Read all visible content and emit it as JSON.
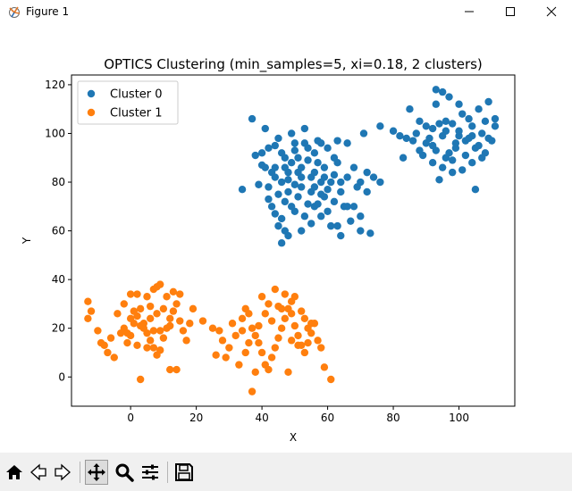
{
  "window": {
    "title": "Figure 1",
    "icons": [
      "matplotlib-app-icon",
      "minimize-icon",
      "maximize-icon",
      "close-icon"
    ]
  },
  "toolbar": {
    "tools": [
      "home-icon",
      "back-icon",
      "forward-icon",
      "pan-icon",
      "zoom-icon",
      "configure-subplots-icon",
      "save-icon"
    ],
    "active_tool": "pan-icon"
  },
  "chart_data": {
    "type": "scatter",
    "title": "OPTICS Clustering (min_samples=5, xi=0.18, 2 clusters)",
    "xlabel": "X",
    "ylabel": "Y",
    "xlim": [
      -18,
      117
    ],
    "ylim": [
      -12,
      124
    ],
    "xticks": [
      0,
      20,
      40,
      60,
      80,
      100
    ],
    "yticks": [
      0,
      20,
      40,
      60,
      80,
      100,
      120
    ],
    "grid": false,
    "legend": "top-left",
    "series": [
      {
        "name": "Cluster 0",
        "color": "#1f77b4",
        "points": [
          [
            37,
            106
          ],
          [
            41,
            102
          ],
          [
            45,
            98
          ],
          [
            42,
            94
          ],
          [
            47,
            90
          ],
          [
            38,
            91
          ],
          [
            44,
            86
          ],
          [
            49,
            88
          ],
          [
            51,
            84
          ],
          [
            46,
            80
          ],
          [
            42,
            78
          ],
          [
            48,
            76
          ],
          [
            52,
            78
          ],
          [
            55,
            82
          ],
          [
            57,
            88
          ],
          [
            50,
            93
          ],
          [
            53,
            96
          ],
          [
            56,
            92
          ],
          [
            59,
            86
          ],
          [
            61,
            80
          ],
          [
            58,
            75
          ],
          [
            54,
            71
          ],
          [
            50,
            68
          ],
          [
            46,
            65
          ],
          [
            43,
            70
          ],
          [
            47,
            72
          ],
          [
            51,
            74
          ],
          [
            56,
            70
          ],
          [
            60,
            68
          ],
          [
            62,
            72
          ],
          [
            64,
            76
          ],
          [
            66,
            82
          ],
          [
            63,
            88
          ],
          [
            60,
            94
          ],
          [
            57,
            97
          ],
          [
            63,
            97
          ],
          [
            66,
            96
          ],
          [
            68,
            86
          ],
          [
            70,
            80
          ],
          [
            72,
            84
          ],
          [
            74,
            82
          ],
          [
            71,
            100
          ],
          [
            45,
            62
          ],
          [
            48,
            58
          ],
          [
            52,
            60
          ],
          [
            55,
            63
          ],
          [
            58,
            66
          ],
          [
            61,
            62
          ],
          [
            64,
            58
          ],
          [
            67,
            64
          ],
          [
            70,
            60
          ],
          [
            73,
            59
          ],
          [
            34,
            77
          ],
          [
            42,
            73
          ],
          [
            44,
            82
          ],
          [
            40,
            87
          ],
          [
            49,
            100
          ],
          [
            53,
            102
          ],
          [
            47,
            60
          ],
          [
            59,
            74
          ],
          [
            65,
            70
          ],
          [
            69,
            78
          ],
          [
            72,
            76
          ],
          [
            76,
            80
          ],
          [
            43,
            84
          ],
          [
            47,
            86
          ],
          [
            50,
            79
          ],
          [
            52,
            86
          ],
          [
            54,
            89
          ],
          [
            56,
            84
          ],
          [
            58,
            80
          ],
          [
            60,
            77
          ],
          [
            62,
            83
          ],
          [
            45,
            75
          ],
          [
            48,
            81
          ],
          [
            51,
            90
          ],
          [
            55,
            76
          ],
          [
            57,
            71
          ],
          [
            53,
            66
          ],
          [
            49,
            70
          ],
          [
            46,
            55
          ],
          [
            44,
            67
          ],
          [
            63,
            62
          ],
          [
            66,
            70
          ],
          [
            68,
            70
          ],
          [
            70,
            66
          ],
          [
            40,
            92
          ],
          [
            39,
            79
          ],
          [
            41,
            86
          ],
          [
            50,
            96
          ],
          [
            54,
            94
          ],
          [
            62,
            90
          ],
          [
            64,
            80
          ],
          [
            59,
            82
          ],
          [
            56,
            78
          ],
          [
            52,
            82
          ],
          [
            48,
            84
          ],
          [
            46,
            92
          ],
          [
            44,
            95
          ],
          [
            58,
            96
          ],
          [
            85,
            110
          ],
          [
            88,
            105
          ],
          [
            92,
            102
          ],
          [
            95,
            99
          ],
          [
            98,
            104
          ],
          [
            101,
            108
          ],
          [
            104,
            103
          ],
          [
            107,
            100
          ],
          [
            110,
            97
          ],
          [
            93,
            112
          ],
          [
            97,
            115
          ],
          [
            100,
            112
          ],
          [
            103,
            106
          ],
          [
            106,
            110
          ],
          [
            109,
            113
          ],
          [
            90,
            96
          ],
          [
            93,
            93
          ],
          [
            96,
            90
          ],
          [
            99,
            94
          ],
          [
            102,
            97
          ],
          [
            105,
            94
          ],
          [
            108,
            92
          ],
          [
            111,
            103
          ],
          [
            87,
            100
          ],
          [
            84,
            98
          ],
          [
            80,
            101
          ],
          [
            82,
            99
          ],
          [
            89,
            91
          ],
          [
            92,
            88
          ],
          [
            95,
            86
          ],
          [
            98,
            84
          ],
          [
            94,
            81
          ],
          [
            97,
            92
          ],
          [
            100,
            99
          ],
          [
            103,
            98
          ],
          [
            106,
            95
          ],
          [
            88,
            93
          ],
          [
            91,
            98
          ],
          [
            94,
            104
          ],
          [
            96,
            101
          ],
          [
            99,
            96
          ],
          [
            102,
            91
          ],
          [
            104,
            88
          ],
          [
            107,
            90
          ],
          [
            109,
            98
          ],
          [
            111,
            106
          ],
          [
            105,
            77
          ],
          [
            101,
            85
          ],
          [
            93,
            118
          ],
          [
            95,
            117
          ],
          [
            86,
            97
          ],
          [
            90,
            103
          ],
          [
            104,
            99
          ],
          [
            108,
            105
          ],
          [
            98,
            89
          ],
          [
            92,
            95
          ],
          [
            96,
            105
          ],
          [
            100,
            101
          ],
          [
            83,
            90
          ],
          [
            76,
            103
          ]
        ]
      },
      {
        "name": "Cluster 1",
        "color": "#ff7f0e",
        "points": [
          [
            -13,
            31
          ],
          [
            -12,
            27
          ],
          [
            -13,
            24
          ],
          [
            -10,
            19
          ],
          [
            -8,
            13
          ],
          [
            -9,
            14
          ],
          [
            -7,
            10
          ],
          [
            -5,
            8
          ],
          [
            -4,
            26
          ],
          [
            -2,
            20
          ],
          [
            -1,
            14
          ],
          [
            0,
            17
          ],
          [
            1,
            22
          ],
          [
            2,
            25
          ],
          [
            3,
            28
          ],
          [
            4,
            22
          ],
          [
            5,
            18
          ],
          [
            6,
            15
          ],
          [
            7,
            12
          ],
          [
            8,
            9
          ],
          [
            9,
            11
          ],
          [
            10,
            16
          ],
          [
            11,
            20
          ],
          [
            12,
            24
          ],
          [
            13,
            27
          ],
          [
            14,
            30
          ],
          [
            15,
            23
          ],
          [
            16,
            19
          ],
          [
            17,
            15
          ],
          [
            18,
            22
          ],
          [
            19,
            28
          ],
          [
            2,
            34
          ],
          [
            5,
            33
          ],
          [
            7,
            36
          ],
          [
            8,
            37
          ],
          [
            9,
            38
          ],
          [
            11,
            33
          ],
          [
            13,
            35
          ],
          [
            15,
            34
          ],
          [
            3,
            -1
          ],
          [
            12,
            3
          ],
          [
            14,
            3
          ],
          [
            -3,
            18
          ],
          [
            -6,
            16
          ],
          [
            0,
            24
          ],
          [
            1,
            27
          ],
          [
            4,
            20
          ],
          [
            6,
            24
          ],
          [
            8,
            26
          ],
          [
            10,
            28
          ],
          [
            12,
            21
          ],
          [
            -2,
            30
          ],
          [
            0,
            34
          ],
          [
            3,
            21
          ],
          [
            6,
            29
          ],
          [
            9,
            19
          ],
          [
            -1,
            18
          ],
          [
            2,
            13
          ],
          [
            5,
            12
          ],
          [
            7,
            19
          ],
          [
            22,
            23
          ],
          [
            25,
            20
          ],
          [
            27,
            19
          ],
          [
            28,
            15
          ],
          [
            29,
            8
          ],
          [
            26,
            9
          ],
          [
            30,
            12
          ],
          [
            32,
            17
          ],
          [
            34,
            24
          ],
          [
            35,
            28
          ],
          [
            36,
            26
          ],
          [
            37,
            20
          ],
          [
            38,
            17
          ],
          [
            39,
            14
          ],
          [
            40,
            10
          ],
          [
            41,
            5
          ],
          [
            42,
            3
          ],
          [
            43,
            8
          ],
          [
            44,
            12
          ],
          [
            45,
            16
          ],
          [
            46,
            20
          ],
          [
            47,
            24
          ],
          [
            48,
            28
          ],
          [
            49,
            26
          ],
          [
            50,
            21
          ],
          [
            51,
            17
          ],
          [
            52,
            13
          ],
          [
            53,
            10
          ],
          [
            54,
            14
          ],
          [
            55,
            18
          ],
          [
            56,
            22
          ],
          [
            57,
            15
          ],
          [
            58,
            12
          ],
          [
            59,
            4
          ],
          [
            61,
            -1
          ],
          [
            44,
            36
          ],
          [
            47,
            34
          ],
          [
            49,
            31
          ],
          [
            52,
            27
          ],
          [
            33,
            5
          ],
          [
            37,
            -6
          ],
          [
            38,
            2
          ],
          [
            35,
            10
          ],
          [
            31,
            22
          ],
          [
            40,
            33
          ],
          [
            42,
            30
          ],
          [
            46,
            28
          ],
          [
            50,
            33
          ],
          [
            53,
            24
          ],
          [
            54,
            20
          ],
          [
            55,
            22
          ],
          [
            48,
            2
          ],
          [
            51,
            13
          ],
          [
            43,
            23
          ],
          [
            39,
            21
          ],
          [
            41,
            26
          ],
          [
            45,
            29
          ],
          [
            36,
            14
          ],
          [
            34,
            19
          ],
          [
            49,
            15
          ]
        ]
      }
    ]
  }
}
